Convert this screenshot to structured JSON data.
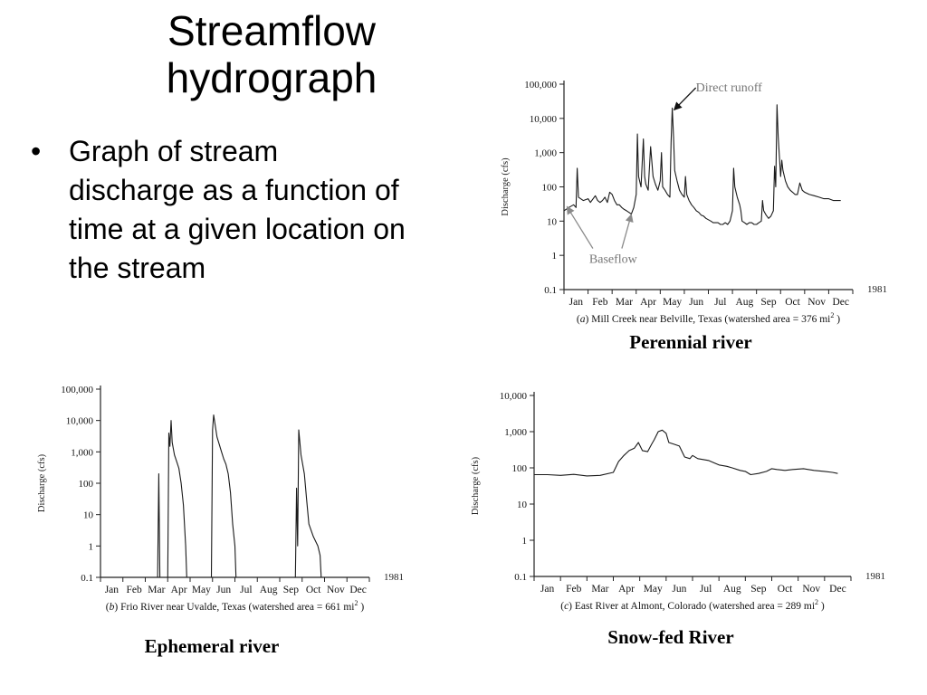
{
  "slide": {
    "title": "Streamflow hydrograph",
    "bullets": [
      "Graph of stream discharge as a function of time at a given location on the stream"
    ]
  },
  "chart_data": [
    {
      "id": "a",
      "type": "line",
      "caption": "Perennial river",
      "subcaption_letter": "a",
      "subcaption_text": "Mill Creek near Belville, Texas (watershed area = 376 mi",
      "subcaption_sup": "2",
      "subcaption_end": ")",
      "year_label": "1981",
      "ylabel": "Discharge (cfs)",
      "yscale": "log",
      "ylim": [
        0.1,
        100000
      ],
      "yticks": [
        0.1,
        1,
        10,
        100,
        1000,
        10000,
        100000
      ],
      "ytick_labels": [
        "0.1",
        "1",
        "10",
        "100",
        "1,000",
        "10,000",
        "100,000"
      ],
      "xlim": [
        0,
        12
      ],
      "months": [
        "Jan",
        "Feb",
        "Mar",
        "Apr",
        "May",
        "Jun",
        "Jul",
        "Aug",
        "Sep",
        "Oct",
        "Nov",
        "Dec"
      ],
      "annotations": [
        {
          "text": "Direct runoff",
          "target": [
            4.5,
            20000
          ]
        },
        {
          "text": "Baseflow",
          "target": [
            0.05,
            30
          ]
        },
        {
          "text": "Baseflow",
          "target": [
            2.8,
            20
          ]
        }
      ],
      "series": [
        {
          "points": [
            [
              0,
              20
            ],
            [
              0.2,
              25
            ],
            [
              0.4,
              30
            ],
            [
              0.5,
              25
            ],
            [
              0.55,
              350
            ],
            [
              0.6,
              50
            ],
            [
              0.8,
              40
            ],
            [
              1.0,
              45
            ],
            [
              1.1,
              35
            ],
            [
              1.3,
              55
            ],
            [
              1.4,
              40
            ],
            [
              1.5,
              35
            ],
            [
              1.6,
              40
            ],
            [
              1.7,
              50
            ],
            [
              1.8,
              35
            ],
            [
              1.9,
              70
            ],
            [
              2.0,
              60
            ],
            [
              2.1,
              40
            ],
            [
              2.2,
              30
            ],
            [
              2.3,
              30
            ],
            [
              2.4,
              25
            ],
            [
              2.5,
              22
            ],
            [
              2.6,
              20
            ],
            [
              2.7,
              18
            ],
            [
              2.8,
              16
            ],
            [
              2.9,
              25
            ],
            [
              3.0,
              60
            ],
            [
              3.05,
              3500
            ],
            [
              3.1,
              200
            ],
            [
              3.2,
              100
            ],
            [
              3.3,
              2500
            ],
            [
              3.35,
              200
            ],
            [
              3.4,
              120
            ],
            [
              3.5,
              80
            ],
            [
              3.6,
              1500
            ],
            [
              3.7,
              200
            ],
            [
              3.8,
              120
            ],
            [
              3.9,
              80
            ],
            [
              4.0,
              150
            ],
            [
              4.05,
              1000
            ],
            [
              4.1,
              100
            ],
            [
              4.2,
              80
            ],
            [
              4.3,
              60
            ],
            [
              4.4,
              50
            ],
            [
              4.45,
              2000
            ],
            [
              4.5,
              20000
            ],
            [
              4.55,
              3000
            ],
            [
              4.6,
              300
            ],
            [
              4.7,
              150
            ],
            [
              4.8,
              80
            ],
            [
              4.9,
              60
            ],
            [
              5.0,
              50
            ],
            [
              5.05,
              200
            ],
            [
              5.1,
              60
            ],
            [
              5.2,
              40
            ],
            [
              5.3,
              30
            ],
            [
              5.4,
              25
            ],
            [
              5.5,
              20
            ],
            [
              5.6,
              18
            ],
            [
              5.7,
              15
            ],
            [
              5.8,
              14
            ],
            [
              5.9,
              12
            ],
            [
              6.0,
              11
            ],
            [
              6.1,
              10
            ],
            [
              6.2,
              9
            ],
            [
              6.3,
              9
            ],
            [
              6.4,
              9
            ],
            [
              6.5,
              8
            ],
            [
              6.6,
              8
            ],
            [
              6.7,
              9
            ],
            [
              6.8,
              8
            ],
            [
              6.9,
              10
            ],
            [
              7.0,
              20
            ],
            [
              7.05,
              350
            ],
            [
              7.1,
              100
            ],
            [
              7.2,
              50
            ],
            [
              7.3,
              30
            ],
            [
              7.35,
              20
            ],
            [
              7.4,
              10
            ],
            [
              7.5,
              9
            ],
            [
              7.6,
              8
            ],
            [
              7.7,
              9
            ],
            [
              7.8,
              9
            ],
            [
              7.9,
              8
            ],
            [
              8.0,
              8
            ],
            [
              8.1,
              9
            ],
            [
              8.2,
              10
            ],
            [
              8.25,
              40
            ],
            [
              8.3,
              20
            ],
            [
              8.4,
              15
            ],
            [
              8.5,
              12
            ],
            [
              8.6,
              14
            ],
            [
              8.7,
              20
            ],
            [
              8.75,
              400
            ],
            [
              8.8,
              100
            ],
            [
              8.85,
              25000
            ],
            [
              8.9,
              3000
            ],
            [
              9.0,
              200
            ],
            [
              9.05,
              600
            ],
            [
              9.1,
              300
            ],
            [
              9.2,
              150
            ],
            [
              9.3,
              100
            ],
            [
              9.4,
              80
            ],
            [
              9.5,
              70
            ],
            [
              9.6,
              60
            ],
            [
              9.7,
              60
            ],
            [
              9.8,
              130
            ],
            [
              9.9,
              80
            ],
            [
              10.0,
              70
            ],
            [
              10.2,
              60
            ],
            [
              10.4,
              55
            ],
            [
              10.6,
              50
            ],
            [
              10.8,
              45
            ],
            [
              11.0,
              45
            ],
            [
              11.2,
              40
            ],
            [
              11.5,
              40
            ]
          ]
        }
      ]
    },
    {
      "id": "b",
      "type": "line",
      "caption": "Ephemeral river",
      "subcaption_letter": "b",
      "subcaption_text": "Frio River near Uvalde, Texas (watershed area = 661 mi",
      "subcaption_sup": "2",
      "subcaption_end": ")",
      "year_label": "1981",
      "ylabel": "Discharge (cfs)",
      "yscale": "log",
      "ylim": [
        0.1,
        100000
      ],
      "yticks": [
        0.1,
        1,
        10,
        100,
        1000,
        10000,
        100000
      ],
      "ytick_labels": [
        "0.1",
        "1",
        "10",
        "100",
        "1,000",
        "10,000",
        "100,000"
      ],
      "xlim": [
        0,
        12
      ],
      "months": [
        "Jan",
        "Feb",
        "Mar",
        "Apr",
        "May",
        "Jun",
        "Jul",
        "Aug",
        "Sep",
        "Oct",
        "Nov",
        "Dec"
      ],
      "series": [
        {
          "segments": [
            [
              [
                2.55,
                0.1
              ],
              [
                2.6,
                200
              ],
              [
                2.65,
                0.1
              ]
            ],
            [
              [
                3.0,
                0.1
              ],
              [
                3.05,
                4000
              ],
              [
                3.1,
                1500
              ],
              [
                3.15,
                10000
              ],
              [
                3.2,
                2000
              ],
              [
                3.3,
                800
              ],
              [
                3.4,
                500
              ],
              [
                3.5,
                300
              ],
              [
                3.6,
                100
              ],
              [
                3.7,
                20
              ],
              [
                3.8,
                1
              ],
              [
                3.85,
                0.1
              ]
            ],
            [
              [
                4.95,
                0.1
              ],
              [
                5.0,
                5000
              ],
              [
                5.05,
                15000
              ],
              [
                5.2,
                3000
              ],
              [
                5.4,
                1000
              ],
              [
                5.5,
                600
              ],
              [
                5.6,
                400
              ],
              [
                5.7,
                200
              ],
              [
                5.8,
                50
              ],
              [
                5.9,
                5
              ],
              [
                6.0,
                1
              ],
              [
                6.05,
                0.1
              ]
            ],
            [
              [
                8.7,
                0.1
              ],
              [
                8.75,
                70
              ],
              [
                8.8,
                1
              ],
              [
                8.85,
                5000
              ],
              [
                8.95,
                800
              ],
              [
                9.1,
                200
              ],
              [
                9.2,
                30
              ],
              [
                9.3,
                5
              ],
              [
                9.5,
                2
              ],
              [
                9.7,
                1
              ],
              [
                9.8,
                0.5
              ],
              [
                9.85,
                0.1
              ]
            ]
          ]
        }
      ]
    },
    {
      "id": "c",
      "type": "line",
      "caption": "Snow-fed River",
      "subcaption_letter": "c",
      "subcaption_text": "East River at Almont, Colorado (watershed area = 289 mi",
      "subcaption_sup": "2",
      "subcaption_end": ")",
      "year_label": "1981",
      "ylabel": "Discharge (cfs)",
      "yscale": "log",
      "ylim": [
        0.1,
        10000
      ],
      "yticks": [
        0.1,
        1,
        10,
        100,
        1000,
        10000
      ],
      "ytick_labels": [
        "0.1",
        "1",
        "10",
        "100",
        "1,000",
        "10,000"
      ],
      "xlim": [
        0,
        12
      ],
      "months": [
        "Jan",
        "Feb",
        "Mar",
        "Apr",
        "May",
        "Jun",
        "Jul",
        "Aug",
        "Sep",
        "Oct",
        "Nov",
        "Dec"
      ],
      "series": [
        {
          "points": [
            [
              0,
              65
            ],
            [
              0.5,
              65
            ],
            [
              1.0,
              62
            ],
            [
              1.5,
              66
            ],
            [
              2.0,
              60
            ],
            [
              2.5,
              62
            ],
            [
              3.0,
              75
            ],
            [
              3.2,
              150
            ],
            [
              3.4,
              220
            ],
            [
              3.6,
              300
            ],
            [
              3.8,
              350
            ],
            [
              3.95,
              500
            ],
            [
              4.1,
              300
            ],
            [
              4.3,
              280
            ],
            [
              4.45,
              450
            ],
            [
              4.55,
              600
            ],
            [
              4.7,
              1000
            ],
            [
              4.85,
              1100
            ],
            [
              5.0,
              900
            ],
            [
              5.1,
              500
            ],
            [
              5.3,
              450
            ],
            [
              5.5,
              400
            ],
            [
              5.7,
              200
            ],
            [
              5.9,
              180
            ],
            [
              6.0,
              220
            ],
            [
              6.2,
              180
            ],
            [
              6.4,
              170
            ],
            [
              6.6,
              160
            ],
            [
              6.8,
              140
            ],
            [
              7.0,
              120
            ],
            [
              7.3,
              110
            ],
            [
              7.5,
              100
            ],
            [
              7.8,
              85
            ],
            [
              8.0,
              80
            ],
            [
              8.2,
              65
            ],
            [
              8.5,
              70
            ],
            [
              8.8,
              80
            ],
            [
              9.0,
              95
            ],
            [
              9.2,
              90
            ],
            [
              9.5,
              85
            ],
            [
              9.8,
              90
            ],
            [
              10.2,
              95
            ],
            [
              10.6,
              85
            ],
            [
              11.0,
              80
            ],
            [
              11.3,
              75
            ],
            [
              11.5,
              70
            ]
          ]
        }
      ]
    }
  ]
}
